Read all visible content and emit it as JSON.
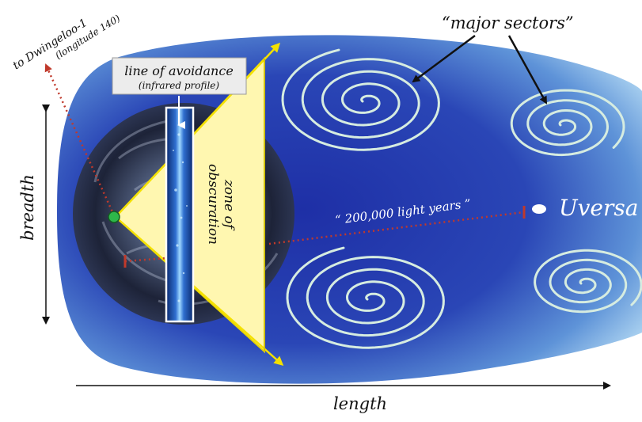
{
  "diagram": {
    "major_sectors_label": "“major sectors”",
    "line_of_avoidance_label": "line of avoidance",
    "infrared_profile_label": "(infrared profile)",
    "zone_of_obscuration_line1": "zone of",
    "zone_of_obscuration_line2": "obscuration",
    "distance_label": "“ 200,000 light years ”",
    "destination_label": "Uversa",
    "direction_label_line1": "to Dwingeloo-1",
    "direction_label_line2": "(longitude 140)",
    "breadth_label": "breadth",
    "length_label": "length"
  },
  "colors": {
    "galaxy_outer": "#a8d2ef",
    "galaxy_inner": "#1a2a9c",
    "spiral_stroke": "#d6ece0",
    "zone_fill": "#fff7b0",
    "zone_edge": "#e8d600",
    "dotted_line": "#c0392b",
    "observer_dot": "#2eb84a",
    "label_box": "#ececec"
  },
  "icons": [
    "observer-dot",
    "uversa-dot",
    "spiral-sector-icon"
  ]
}
